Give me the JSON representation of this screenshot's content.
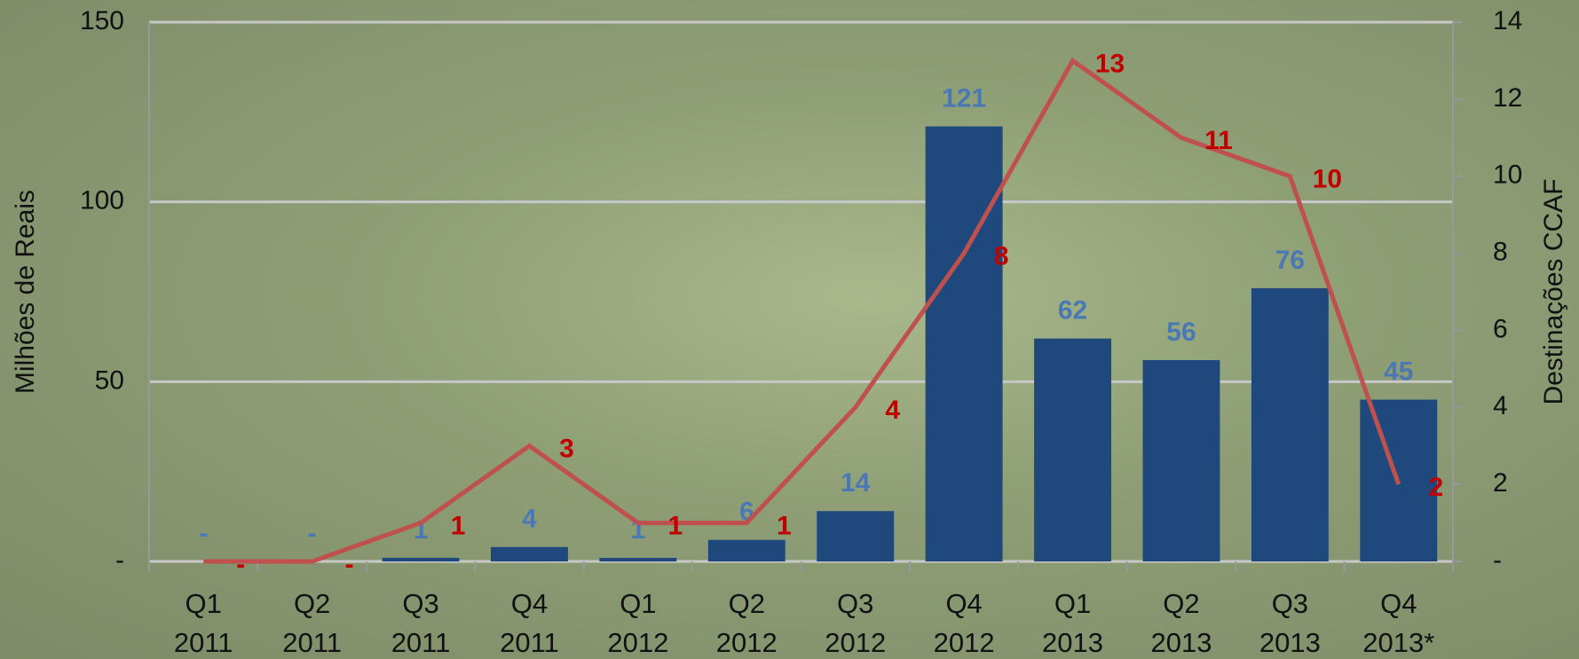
{
  "chart_data": {
    "type": "bar-line",
    "categories": [
      "Q1\n2011",
      "Q2\n2011",
      "Q3\n2011",
      "Q4\n2011",
      "Q1\n2012",
      "Q2\n2012",
      "Q3\n2012",
      "Q4\n2012",
      "Q1\n2013",
      "Q2\n2013",
      "Q3\n2013",
      "Q4\n2013*"
    ],
    "y_label": "Milhões de Reais",
    "y2_label": "Destinações CCAF",
    "ylim": [
      0,
      150
    ],
    "yticks": [
      {
        "value": 0,
        "label": "-"
      },
      50,
      100,
      150
    ],
    "y2lim": [
      0,
      14
    ],
    "y2ticks": [
      {
        "value": 0,
        "label": "-"
      },
      2,
      4,
      6,
      8,
      10,
      12,
      14
    ],
    "grid": true,
    "series": [
      {
        "type": "bar",
        "color": "#1f497d",
        "label_color": "#4a78b4",
        "values": [
          0,
          0,
          1,
          4,
          1,
          6,
          14,
          121,
          62,
          56,
          76,
          45
        ],
        "value_labels": [
          "-",
          "-",
          "1",
          "4",
          "1",
          "6",
          "14",
          "121",
          "62",
          "56",
          "76",
          "45"
        ]
      },
      {
        "type": "line",
        "axis": "y2",
        "color": "#c0504d",
        "label_color": "#c00000",
        "values": [
          0,
          0,
          1,
          3,
          1,
          1,
          4,
          8,
          13,
          11,
          10,
          2
        ],
        "value_labels": [
          "-",
          "-",
          "1",
          "3",
          "1",
          "1",
          "4",
          "8",
          "13",
          "11",
          "10",
          "2"
        ]
      }
    ]
  }
}
